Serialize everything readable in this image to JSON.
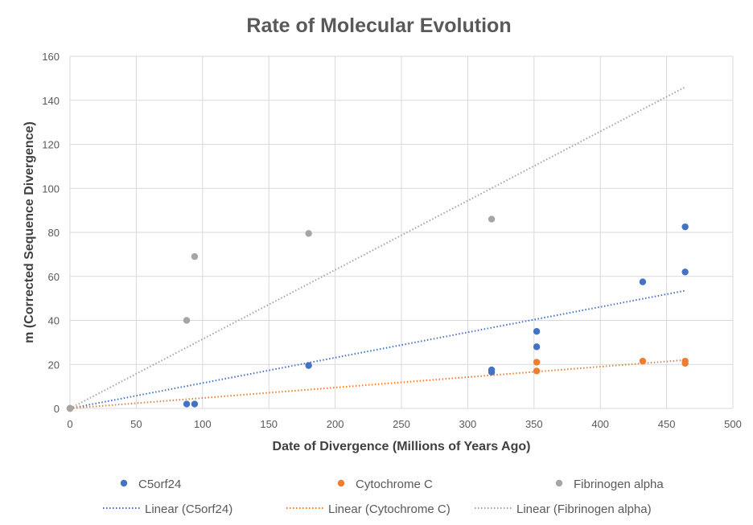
{
  "chart_data": {
    "type": "scatter",
    "title": "Rate of Molecular Evolution",
    "xlabel": "Date of Divergence (Millions of Years Ago)",
    "ylabel": "m (Corrected Sequence Divergence)",
    "xlim": [
      0,
      500
    ],
    "ylim": [
      0,
      160
    ],
    "x_ticks": [
      0,
      50,
      100,
      150,
      200,
      250,
      300,
      350,
      400,
      450,
      500
    ],
    "y_ticks": [
      0,
      20,
      40,
      60,
      80,
      100,
      120,
      140,
      160
    ],
    "grid": true,
    "legend_position": "bottom",
    "series": [
      {
        "name": "C5orf24",
        "color": "#4472C4",
        "points": [
          [
            0,
            0
          ],
          [
            88,
            2
          ],
          [
            94,
            2
          ],
          [
            180,
            19.5
          ],
          [
            318,
            16.5
          ],
          [
            318,
            17.5
          ],
          [
            352,
            28
          ],
          [
            352,
            35
          ],
          [
            432,
            57.5
          ],
          [
            464,
            62
          ],
          [
            464,
            82.5
          ]
        ]
      },
      {
        "name": "Cytochrome C",
        "color": "#ED7D31",
        "points": [
          [
            0,
            0
          ],
          [
            352,
            17
          ],
          [
            352,
            21
          ],
          [
            432,
            21.5
          ],
          [
            464,
            20.5
          ],
          [
            464,
            21.5
          ]
        ]
      },
      {
        "name": "Fibrinogen alpha",
        "color": "#A5A5A5",
        "points": [
          [
            0,
            0
          ],
          [
            88,
            40
          ],
          [
            94,
            69
          ],
          [
            180,
            79.5
          ],
          [
            318,
            86
          ]
        ]
      }
    ],
    "trendlines": [
      {
        "name": "Linear (C5orf24)",
        "color": "#4472C4",
        "from": [
          0,
          0
        ],
        "to": [
          464,
          53.5
        ]
      },
      {
        "name": "Linear (Cytochrome C)",
        "color": "#ED7D31",
        "from": [
          0,
          0
        ],
        "to": [
          464,
          22
        ]
      },
      {
        "name": "Linear (Fibrinogen alpha)",
        "color": "#A5A5A5",
        "from": [
          0,
          0
        ],
        "to": [
          464,
          146
        ]
      }
    ]
  }
}
